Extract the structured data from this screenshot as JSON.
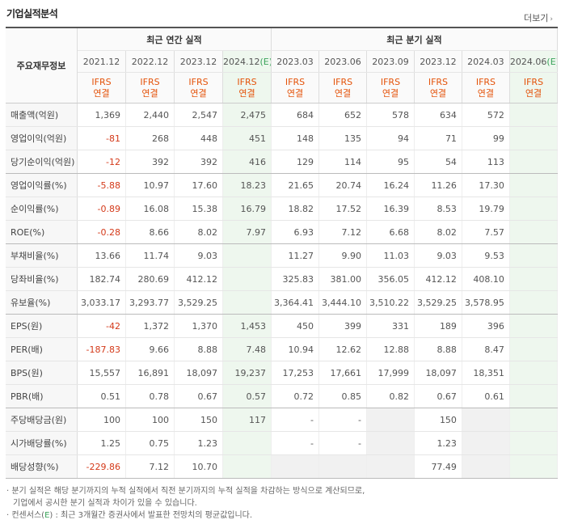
{
  "title": "기업실적분석",
  "more_label": "더보기",
  "header": {
    "stub_label": "주요재무정보",
    "annual_group": "최근 연간 실적",
    "quarter_group": "최근 분기 실적",
    "annual_periods": [
      "2021.12",
      "2022.12",
      "2023.12",
      "2024.12"
    ],
    "annual_estimate_suffix": "(E)",
    "quarter_periods": [
      "2023.03",
      "2023.06",
      "2023.09",
      "2023.12",
      "2024.03",
      "2024.06"
    ],
    "quarter_estimate_suffix": "(E)",
    "basis_line1": "IFRS",
    "basis_line2": "연결"
  },
  "rows": [
    {
      "label": "매출액(억원)",
      "annual": [
        "1,369",
        "2,440",
        "2,547",
        "2,475"
      ],
      "quarter": [
        "684",
        "652",
        "578",
        "634",
        "572",
        ""
      ]
    },
    {
      "label": "영업이익(억원)",
      "annual": [
        "-81",
        "268",
        "448",
        "451"
      ],
      "quarter": [
        "148",
        "135",
        "94",
        "71",
        "99",
        ""
      ]
    },
    {
      "label": "당기순이익(억원)",
      "annual": [
        "-12",
        "392",
        "392",
        "416"
      ],
      "quarter": [
        "129",
        "114",
        "95",
        "54",
        "113",
        ""
      ]
    },
    {
      "label": "영업이익률(%)",
      "annual": [
        "-5.88",
        "10.97",
        "17.60",
        "18.23"
      ],
      "quarter": [
        "21.65",
        "20.74",
        "16.24",
        "11.26",
        "17.30",
        ""
      ]
    },
    {
      "label": "순이익률(%)",
      "annual": [
        "-0.89",
        "16.08",
        "15.38",
        "16.79"
      ],
      "quarter": [
        "18.82",
        "17.52",
        "16.39",
        "8.53",
        "19.79",
        ""
      ]
    },
    {
      "label": "ROE(%)",
      "annual": [
        "-0.28",
        "8.66",
        "8.02",
        "7.97"
      ],
      "quarter": [
        "6.93",
        "7.12",
        "6.68",
        "8.02",
        "7.57",
        ""
      ]
    },
    {
      "label": "부채비율(%)",
      "annual": [
        "13.66",
        "11.74",
        "9.03",
        ""
      ],
      "quarter": [
        "11.27",
        "9.90",
        "11.03",
        "9.03",
        "9.53",
        ""
      ]
    },
    {
      "label": "당좌비율(%)",
      "annual": [
        "182.74",
        "280.69",
        "412.12",
        ""
      ],
      "quarter": [
        "325.83",
        "381.00",
        "356.05",
        "412.12",
        "408.10",
        ""
      ]
    },
    {
      "label": "유보율(%)",
      "annual": [
        "3,033.17",
        "3,293.77",
        "3,529.25",
        ""
      ],
      "quarter": [
        "3,364.41",
        "3,444.10",
        "3,510.22",
        "3,529.25",
        "3,578.95",
        ""
      ]
    },
    {
      "label": "EPS(원)",
      "annual": [
        "-42",
        "1,372",
        "1,370",
        "1,453"
      ],
      "quarter": [
        "450",
        "399",
        "331",
        "189",
        "396",
        ""
      ]
    },
    {
      "label": "PER(배)",
      "annual": [
        "-187.83",
        "9.66",
        "8.88",
        "7.48"
      ],
      "quarter": [
        "10.94",
        "12.62",
        "12.88",
        "8.88",
        "8.47",
        ""
      ]
    },
    {
      "label": "BPS(원)",
      "annual": [
        "15,557",
        "16,891",
        "18,097",
        "19,237"
      ],
      "quarter": [
        "17,253",
        "17,661",
        "17,999",
        "18,097",
        "18,351",
        ""
      ]
    },
    {
      "label": "PBR(배)",
      "annual": [
        "0.51",
        "0.78",
        "0.67",
        "0.57"
      ],
      "quarter": [
        "0.72",
        "0.85",
        "0.82",
        "0.67",
        "0.61",
        ""
      ]
    },
    {
      "label": "주당배당금(원)",
      "annual": [
        "100",
        "100",
        "150",
        "117"
      ],
      "quarter": [
        "-",
        "-",
        "",
        "150",
        "",
        ""
      ]
    },
    {
      "label": "시가배당률(%)",
      "annual": [
        "1.25",
        "0.75",
        "1.23",
        ""
      ],
      "quarter": [
        "-",
        "-",
        "",
        "1.23",
        "",
        ""
      ]
    },
    {
      "label": "배당성향(%)",
      "annual": [
        "-229.86",
        "7.12",
        "10.70",
        ""
      ],
      "quarter": [
        "",
        "",
        "",
        "77.49",
        "",
        ""
      ]
    }
  ],
  "notes": [
    "· 분기 실적은 해당 분기까지의 누적 실적에서 직전 분기까지의 누적 실적을 차감하는 방식으로 계산되므로,",
    "기업에서 공시한 분기 실적과 차이가 있을 수 있습니다.",
    "· 컨센서스(E) : 최근 3개월간 증권사에서 발표한 전망치의 평균값입니다."
  ]
}
